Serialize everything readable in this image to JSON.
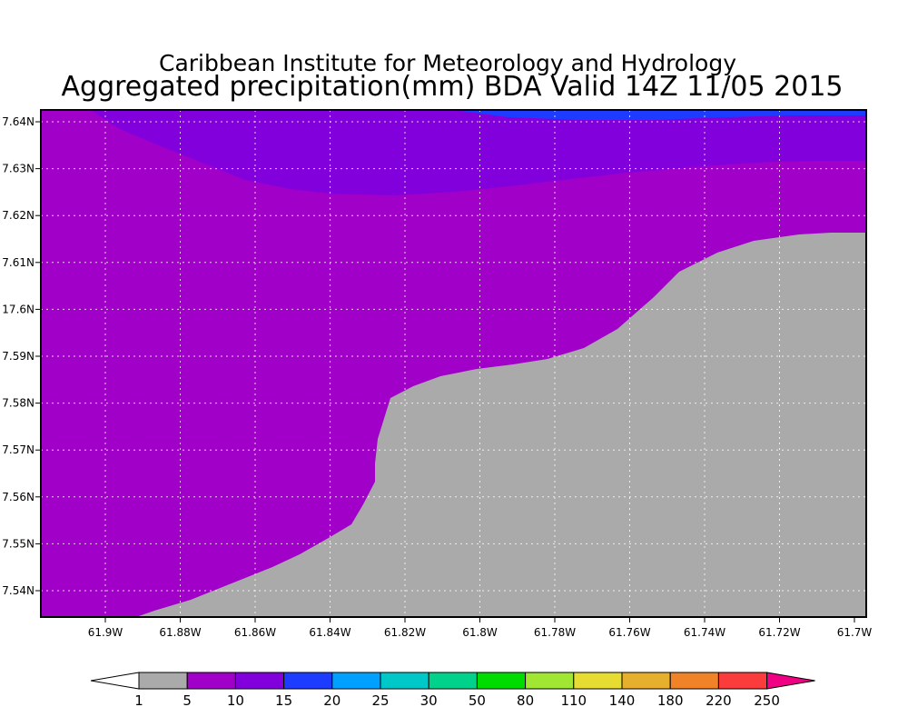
{
  "title": "Caribbean Institute for Meteorology and Hydrology",
  "subtitle": "Aggregated precipitation(mm) BDA Valid 14Z 11/05 2015",
  "map": {
    "lon_ticks": [
      "61.9W",
      "61.88W",
      "61.86W",
      "61.84W",
      "61.82W",
      "61.8W",
      "61.78W",
      "61.76W",
      "61.74W",
      "61.72W",
      "61.7W"
    ],
    "lat_ticks": [
      "7.54N",
      "7.55N",
      "7.56N",
      "7.57N",
      "7.58N",
      "7.59N",
      "17.6N",
      "7.61N",
      "7.62N",
      "7.63N",
      "7.64N"
    ],
    "grid": true,
    "colors": {
      "land": "#aaaaaa",
      "band_5_10": "#a000c8",
      "band_10_15": "#8200dc",
      "band_15_20": "#1e3cff"
    }
  },
  "colorbar": {
    "labels": [
      "1",
      "5",
      "10",
      "15",
      "20",
      "25",
      "30",
      "50",
      "80",
      "110",
      "140",
      "180",
      "220",
      "250"
    ],
    "colors": [
      "#aaaaaa",
      "#a000c8",
      "#8200dc",
      "#1e3cff",
      "#00a0ff",
      "#00c8c8",
      "#00d28c",
      "#00dc00",
      "#a0e632",
      "#e6dc32",
      "#e6af2d",
      "#f08228",
      "#fa3c3c",
      "#f00082"
    ],
    "left_end_color": "#ffffff",
    "right_end_color": "#f00082"
  }
}
